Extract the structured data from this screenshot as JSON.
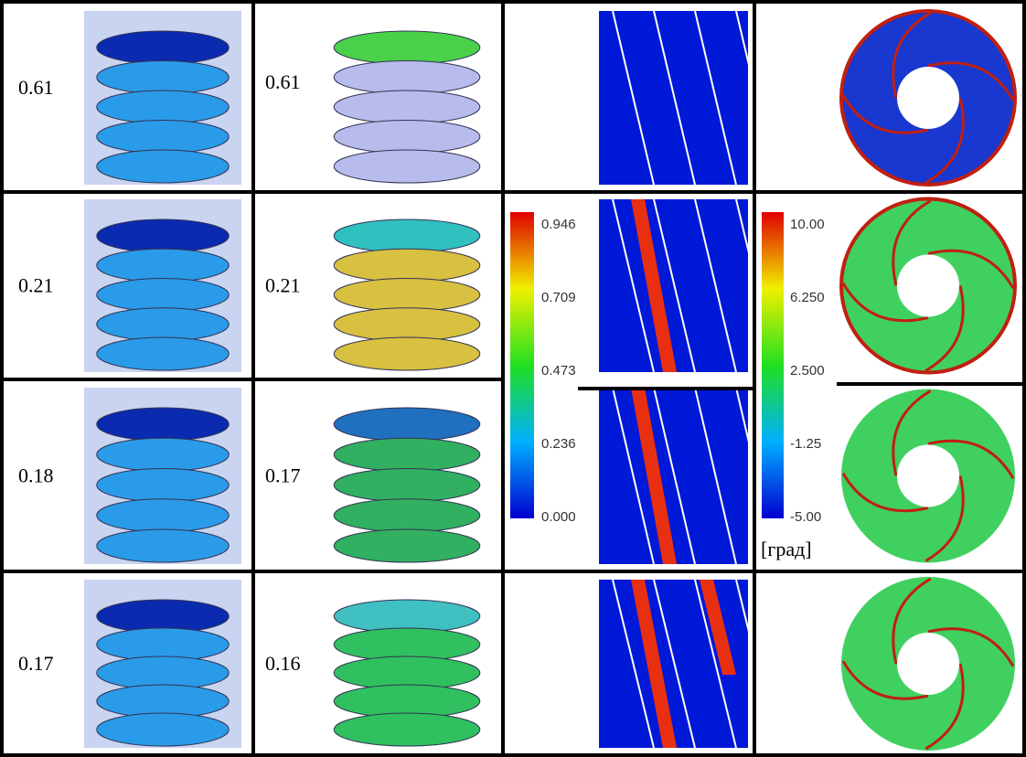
{
  "rows": [
    [
      "0.61",
      "0.61"
    ],
    [
      "0.21",
      "0.21"
    ],
    [
      "0.18",
      "0.17"
    ],
    [
      "0.17",
      "0.16"
    ]
  ],
  "scale_1": {
    "ticks": [
      "0.946",
      "0.709",
      "0.473",
      "0.236",
      "0.000"
    ]
  },
  "scale_2": {
    "ticks": [
      "10.00",
      "6.250",
      "2.500",
      "-1.25",
      "-5.00"
    ],
    "unit": "[град]"
  }
}
